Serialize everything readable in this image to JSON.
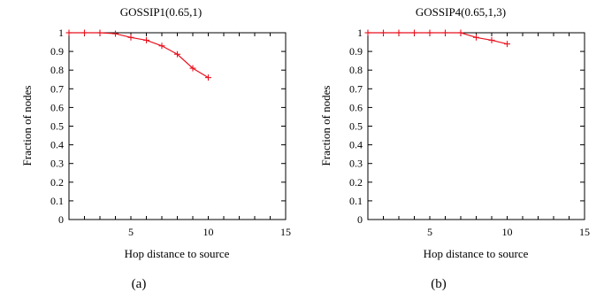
{
  "chart_data": [
    {
      "type": "line",
      "title": "GOSSIP1(0.65,1)",
      "xlabel": "Hop distance to source",
      "ylabel": "Fraction of nodes",
      "caption": "(a)",
      "xlim": [
        1,
        15
      ],
      "ylim": [
        0,
        1
      ],
      "xticks": [
        5,
        10,
        15
      ],
      "yticks": [
        0,
        0.1,
        0.2,
        0.3,
        0.4,
        0.5,
        0.6,
        0.7,
        0.8,
        0.9,
        1
      ],
      "grid": false,
      "series": [
        {
          "color": "#e8121f",
          "marker": "plus",
          "x": [
            1,
            2,
            3,
            4,
            5,
            6,
            7,
            8,
            9,
            10
          ],
          "y": [
            1.0,
            1.0,
            1.0,
            0.995,
            0.975,
            0.96,
            0.93,
            0.885,
            0.81,
            0.76
          ]
        }
      ]
    },
    {
      "type": "line",
      "title": "GOSSIP4(0.65,1,3)",
      "xlabel": "Hop distance to source",
      "ylabel": "Fraction of nodes",
      "caption": "(b)",
      "xlim": [
        1,
        15
      ],
      "ylim": [
        0,
        1
      ],
      "xticks": [
        5,
        10,
        15
      ],
      "yticks": [
        0,
        0.1,
        0.2,
        0.3,
        0.4,
        0.5,
        0.6,
        0.7,
        0.8,
        0.9,
        1
      ],
      "grid": false,
      "series": [
        {
          "color": "#e8121f",
          "marker": "plus",
          "x": [
            1,
            2,
            3,
            4,
            5,
            6,
            7,
            8,
            9,
            10
          ],
          "y": [
            1.0,
            1.0,
            1.0,
            1.0,
            1.0,
            1.0,
            1.0,
            0.975,
            0.96,
            0.94
          ]
        }
      ]
    }
  ]
}
